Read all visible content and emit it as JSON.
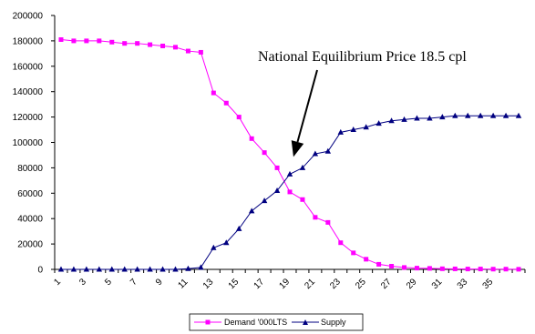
{
  "chart_data": {
    "type": "line",
    "title": "",
    "xlabel": "",
    "ylabel": "",
    "ylim": [
      0,
      200000
    ],
    "y_ticks": [
      "0",
      "20000",
      "40000",
      "60000",
      "80000",
      "100000",
      "120000",
      "140000",
      "160000",
      "180000",
      "200000"
    ],
    "x": [
      1,
      2,
      3,
      4,
      5,
      6,
      7,
      8,
      9,
      10,
      11,
      12,
      13,
      14,
      15,
      16,
      17,
      18,
      19,
      20,
      21,
      22,
      23,
      24,
      25,
      26,
      27,
      28,
      29,
      30,
      31,
      32,
      33,
      34,
      35,
      36,
      37
    ],
    "x_tick_labels": [
      "1",
      "3",
      "5",
      "7",
      "9",
      "11",
      "13",
      "15",
      "17",
      "19",
      "21",
      "23",
      "25",
      "27",
      "29",
      "31",
      "33",
      "35"
    ],
    "grid": false,
    "legend_position": "bottom",
    "series": [
      {
        "name": "Demand '000LTS",
        "color": "#ff00ff",
        "marker": "square",
        "values": [
          181000,
          180000,
          180000,
          180000,
          179000,
          178000,
          178000,
          177000,
          176000,
          175000,
          172000,
          171000,
          139000,
          131000,
          120000,
          103000,
          92000,
          80000,
          61000,
          55000,
          41000,
          37000,
          21000,
          13000,
          8000,
          4000,
          2500,
          1500,
          1000,
          800,
          500,
          400,
          300,
          300,
          200,
          200,
          100
        ]
      },
      {
        "name": "Supply",
        "color": "#000080",
        "marker": "triangle",
        "values": [
          0,
          0,
          0,
          0,
          0,
          0,
          0,
          0,
          0,
          0,
          500,
          1500,
          17000,
          21000,
          32000,
          46000,
          54000,
          62000,
          75000,
          80000,
          91000,
          93000,
          108000,
          110000,
          112000,
          115000,
          117000,
          118000,
          119000,
          119000,
          120000,
          121000,
          121000,
          121000,
          121000,
          121000,
          121000
        ]
      }
    ],
    "annotations": [
      {
        "text": "National Equilibrium Price 18.5 cpl",
        "target_x": 19.5,
        "target_y": 80000
      }
    ]
  }
}
